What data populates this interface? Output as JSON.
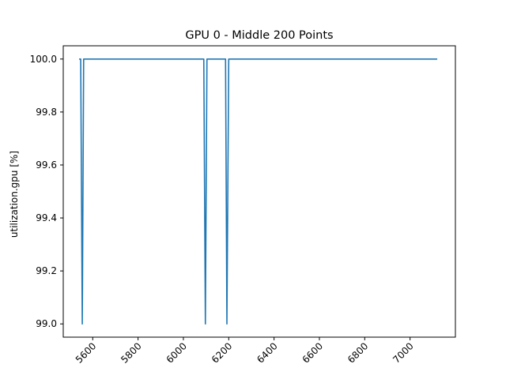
{
  "chart_data": {
    "type": "line",
    "title": "GPU 0 - Middle 200 Points",
    "xlabel": "",
    "ylabel": "utilization.gpu [%]",
    "xlim": [
      5470,
      7200
    ],
    "ylim": [
      98.95,
      100.05
    ],
    "x_ticks": [
      5600,
      5800,
      6000,
      6200,
      6400,
      6600,
      6800,
      7000
    ],
    "y_ticks": [
      99.0,
      99.2,
      99.4,
      99.6,
      99.8,
      100.0
    ],
    "y_tick_labels": [
      "99.0",
      "99.2",
      "99.4",
      "99.6",
      "99.8",
      "100.0"
    ],
    "grid": false,
    "color": "#1f77b4",
    "series": [
      {
        "x": [
          5540,
          5547,
          5554,
          5560,
          5600,
          5800,
          6000,
          6090,
          6097,
          6104,
          6180,
          6186,
          6192,
          6200,
          6400,
          6600,
          6800,
          7000,
          7120
        ],
        "values": [
          100.0,
          100.0,
          99.0,
          100.0,
          100.0,
          100.0,
          100.0,
          100.0,
          99.0,
          100.0,
          100.0,
          100.0,
          99.0,
          100.0,
          100.0,
          100.0,
          100.0,
          100.0,
          100.0
        ]
      }
    ]
  }
}
